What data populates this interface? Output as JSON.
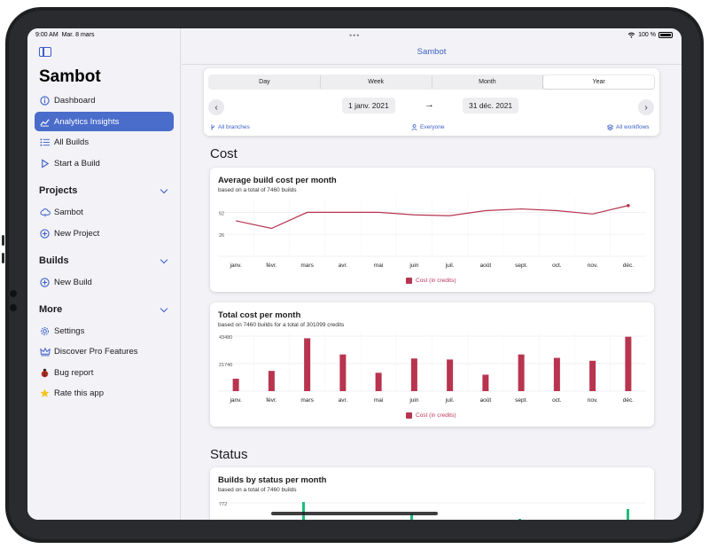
{
  "status_bar": {
    "time": "9:00 AM",
    "date": "Mar. 8 mars",
    "dots": "•••",
    "battery": "100 %"
  },
  "sidebar": {
    "app_title": "Sambot",
    "main_items": [
      {
        "label": "Dashboard",
        "icon": "info-circle-icon"
      },
      {
        "label": "Analytics Insights",
        "icon": "chart-line-icon",
        "active": true
      },
      {
        "label": "All Builds",
        "icon": "list-icon"
      },
      {
        "label": "Start a Build",
        "icon": "play-icon"
      }
    ],
    "projects": {
      "title": "Projects",
      "items": [
        {
          "label": "Sambot",
          "icon": "cloud-icon"
        },
        {
          "label": "New Project",
          "icon": "plus-circle-icon"
        }
      ]
    },
    "builds": {
      "title": "Builds",
      "items": [
        {
          "label": "New Build",
          "icon": "plus-circle-icon"
        }
      ]
    },
    "more": {
      "title": "More",
      "items": [
        {
          "label": "Settings",
          "icon": "gear-icon"
        },
        {
          "label": "Discover Pro Features",
          "icon": "crown-icon"
        },
        {
          "label": "Bug report",
          "icon": "ladybug-icon"
        },
        {
          "label": "Rate this app",
          "icon": "star-icon"
        }
      ]
    }
  },
  "header": {
    "title": "Sambot"
  },
  "filters": {
    "segments": [
      "Day",
      "Week",
      "Month",
      "Year"
    ],
    "selected_segment": "Year",
    "start_date": "1 janv. 2021",
    "arrow": "→",
    "end_date": "31 déc. 2021",
    "branches": "All branches",
    "users": "Everyone",
    "workflows": "All workflows"
  },
  "sections": {
    "cost": "Cost",
    "status": "Status"
  },
  "colors": {
    "accent": "#3c5fc7",
    "series": "#b8344f",
    "success": "#1fbe7a"
  },
  "chart_data": [
    {
      "type": "line",
      "title": "Average build cost per month",
      "subtitle": "based on a total of 7460 builds",
      "categories": [
        "janv.",
        "févr.",
        "mars",
        "avr.",
        "mai",
        "juin",
        "juil.",
        "août",
        "sept.",
        "oct.",
        "nov.",
        "déc."
      ],
      "series": [
        {
          "name": "Cost (in credits)",
          "values": [
            42,
            33,
            52,
            52,
            52,
            49,
            48,
            54,
            56,
            54,
            50,
            60
          ]
        }
      ],
      "ylim": [
        0,
        65
      ],
      "yticks": [
        26,
        52
      ],
      "legend": "bottom-center"
    },
    {
      "type": "bar",
      "title": "Total cost per month",
      "subtitle": "based on 7460 builds for a total of 301099 credits",
      "categories": [
        "janv.",
        "févr.",
        "mars",
        "avr.",
        "mai",
        "juin",
        "juil.",
        "août",
        "sept.",
        "oct.",
        "nov.",
        "déc."
      ],
      "series": [
        {
          "name": "Cost (in credits)",
          "values": [
            9800,
            16000,
            41800,
            29000,
            14500,
            25800,
            25000,
            13000,
            29000,
            26300,
            24000,
            43000
          ]
        }
      ],
      "ylim": [
        0,
        43480
      ],
      "yticks": [
        21740,
        43480
      ],
      "legend": "bottom-center"
    },
    {
      "type": "bar",
      "title": "Builds by status per month",
      "subtitle": "based on a total of 7460 builds",
      "yticks": [
        772
      ]
    }
  ]
}
